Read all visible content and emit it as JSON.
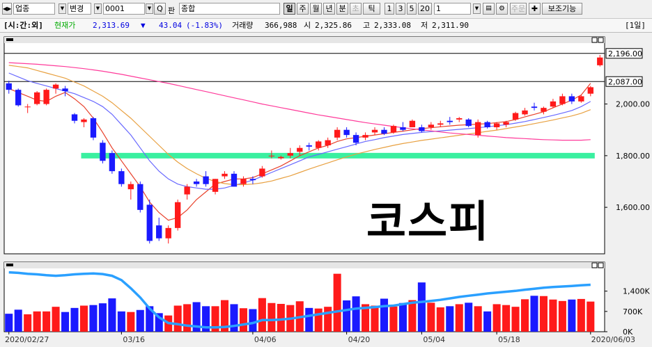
{
  "toolbar": {
    "market": "업종",
    "change_label": "변경",
    "code": "0001",
    "search_label": "Q",
    "pan_label": "판",
    "name": "종합",
    "periods": [
      "일",
      "주",
      "월",
      "년",
      "분",
      "초",
      "틱"
    ],
    "active_period": "일",
    "intervals": [
      "1",
      "3",
      "5",
      "20"
    ],
    "count": "1",
    "order_label": "주문",
    "aux_label": "보조기능"
  },
  "info": {
    "tag": "[시:간:외]",
    "price_label": "현재가",
    "price": "2,313.69",
    "arrow": "▼",
    "change": "43.04",
    "change_pct": "(-1.83%)",
    "volume_label": "거래량",
    "volume": "366,988",
    "open_label": "시",
    "open": "2,325.86",
    "high_label": "고",
    "high": "2,333.08",
    "low_label": "저",
    "low": "2,311.90",
    "period_tag": "[1일]"
  },
  "title_overlay": "코스피",
  "colors": {
    "up": "#ff1a1a",
    "down": "#1a1aff",
    "ma5": "#e8402a",
    "ma20": "#6868ff",
    "ma60": "#e8a040",
    "ma120": "#ff3a9a",
    "band": "#3af0a0",
    "vol_ma": "#2aa0ff"
  },
  "chart_data": {
    "type": "candlestick",
    "price_axis": {
      "ticks": [
        "2,000.00",
        "1,800.00",
        "1,600.00"
      ],
      "ticks_values": [
        2000,
        1800,
        1600
      ],
      "range": [
        1420,
        2260
      ]
    },
    "price_markers": [
      {
        "label": "2,196.00",
        "value": 2196
      },
      {
        "label": "2,087.00",
        "value": 2087
      }
    ],
    "volume_axis": {
      "ticks": [
        "1,400K",
        "700K",
        "0K"
      ],
      "ticks_values": [
        1400,
        700,
        0
      ],
      "range": [
        0,
        2400
      ]
    },
    "x_labels": [
      {
        "label": "2020/02/27",
        "index": 0
      },
      {
        "label": "03/16",
        "index": 12
      },
      {
        "label": "04/06",
        "index": 26
      },
      {
        "label": "04/20",
        "index": 36
      },
      {
        "label": "05/04",
        "index": 44
      },
      {
        "label": "05/18",
        "index": 52
      },
      {
        "label": "2020/06/03",
        "index": 62
      }
    ],
    "candles": [
      [
        2080,
        2090,
        2040,
        2055
      ],
      [
        2055,
        2060,
        1990,
        1995
      ],
      [
        1990,
        2000,
        1965,
        1990
      ],
      [
        2000,
        2050,
        1995,
        2045
      ],
      [
        2000,
        2060,
        1995,
        2055
      ],
      [
        2060,
        2080,
        2040,
        2075
      ],
      [
        2060,
        2070,
        2030,
        2050
      ],
      [
        1960,
        1965,
        1925,
        1935
      ],
      [
        1930,
        1945,
        1910,
        1940
      ],
      [
        1945,
        1950,
        1860,
        1870
      ],
      [
        1850,
        1860,
        1770,
        1780
      ],
      [
        1810,
        1820,
        1730,
        1740
      ],
      [
        1740,
        1750,
        1680,
        1690
      ],
      [
        1670,
        1700,
        1630,
        1690
      ],
      [
        1690,
        1700,
        1580,
        1590
      ],
      [
        1610,
        1630,
        1460,
        1470
      ],
      [
        1530,
        1560,
        1470,
        1480
      ],
      [
        1480,
        1530,
        1460,
        1520
      ],
      [
        1520,
        1630,
        1510,
        1620
      ],
      [
        1650,
        1690,
        1630,
        1680
      ],
      [
        1700,
        1710,
        1680,
        1690
      ],
      [
        1720,
        1740,
        1680,
        1690
      ],
      [
        1660,
        1710,
        1650,
        1710
      ],
      [
        1720,
        1740,
        1710,
        1730
      ],
      [
        1730,
        1740,
        1680,
        1680
      ],
      [
        1690,
        1720,
        1680,
        1710
      ],
      [
        1710,
        1720,
        1690,
        1705
      ],
      [
        1720,
        1760,
        1715,
        1750
      ],
      [
        1800,
        1820,
        1790,
        1800
      ],
      [
        1790,
        1800,
        1785,
        1795
      ],
      [
        1800,
        1830,
        1790,
        1810
      ],
      [
        1815,
        1840,
        1800,
        1830
      ],
      [
        1840,
        1850,
        1820,
        1835
      ],
      [
        1830,
        1860,
        1820,
        1855
      ],
      [
        1840,
        1870,
        1830,
        1860
      ],
      [
        1870,
        1910,
        1860,
        1900
      ],
      [
        1900,
        1910,
        1870,
        1880
      ],
      [
        1880,
        1890,
        1840,
        1850
      ],
      [
        1870,
        1890,
        1860,
        1880
      ],
      [
        1890,
        1910,
        1880,
        1900
      ],
      [
        1900,
        1910,
        1880,
        1885
      ],
      [
        1890,
        1920,
        1885,
        1915
      ],
      [
        1910,
        1930,
        1895,
        1900
      ],
      [
        1910,
        1940,
        1910,
        1935
      ],
      [
        1910,
        1920,
        1890,
        1895
      ],
      [
        1910,
        1930,
        1900,
        1920
      ],
      [
        1920,
        1935,
        1910,
        1925
      ],
      [
        1935,
        1950,
        1920,
        1930
      ],
      [
        1940,
        1950,
        1930,
        1945
      ],
      [
        1940,
        1945,
        1910,
        1915
      ],
      [
        1880,
        1940,
        1870,
        1930
      ],
      [
        1930,
        1935,
        1905,
        1910
      ],
      [
        1910,
        1930,
        1900,
        1925
      ],
      [
        1920,
        1935,
        1910,
        1930
      ],
      [
        1940,
        1970,
        1935,
        1965
      ],
      [
        1960,
        1985,
        1955,
        1975
      ],
      [
        1990,
        2005,
        1975,
        1985
      ],
      [
        1970,
        1990,
        1960,
        1985
      ],
      [
        1990,
        2020,
        1985,
        2010
      ],
      [
        2000,
        2040,
        1995,
        2030
      ],
      [
        2030,
        2040,
        2000,
        2010
      ],
      [
        2010,
        2035,
        2005,
        2030
      ],
      [
        2040,
        2070,
        2030,
        2065
      ]
    ],
    "last_candle": {
      "open": 2150,
      "high": 2190,
      "low": 2145,
      "close": 2180
    },
    "volume": [
      620,
      760,
      600,
      700,
      700,
      860,
      680,
      820,
      900,
      920,
      980,
      1150,
      700,
      680,
      750,
      880,
      640,
      560,
      900,
      950,
      1020,
      880,
      880,
      1090,
      950,
      810,
      780,
      1160,
      990,
      960,
      920,
      1050,
      820,
      800,
      860,
      2000,
      1080,
      1220,
      950,
      900,
      1140,
      870,
      990,
      1090,
      1700,
      1000,
      840,
      880,
      950,
      1000,
      880,
      700,
      950,
      920,
      860,
      1120,
      1240,
      1230,
      1110,
      1060,
      1110,
      1130,
      1040
    ],
    "volume_ma": [
      2050,
      2030,
      2000,
      1980,
      1950,
      1930,
      1950,
      1980,
      2000,
      2010,
      1990,
      1930,
      1780,
      1500,
      1180,
      800,
      500,
      300,
      260,
      210,
      180,
      150,
      150,
      160,
      200,
      250,
      300,
      400,
      400,
      420,
      450,
      500,
      550,
      600,
      650,
      700,
      750,
      800,
      820,
      850,
      880,
      900,
      950,
      1000,
      1030,
      1060,
      1100,
      1150,
      1200,
      1240,
      1280,
      1320,
      1350,
      1380,
      1410,
      1450,
      1480,
      1520,
      1540,
      1560,
      1580,
      1600,
      1620
    ],
    "series": [
      {
        "name": "MA5",
        "values": [
          2060,
          2045,
          2030,
          2015,
          2010,
          2030,
          2045,
          2020,
          1990,
          1945,
          1890,
          1830,
          1780,
          1730,
          1680,
          1620,
          1580,
          1550,
          1560,
          1590,
          1630,
          1660,
          1690,
          1700,
          1710,
          1710,
          1715,
          1730,
          1745,
          1760,
          1780,
          1800,
          1815,
          1830,
          1840,
          1855,
          1865,
          1870,
          1875,
          1880,
          1885,
          1890,
          1895,
          1900,
          1905,
          1908,
          1912,
          1915,
          1918,
          1920,
          1922,
          1924,
          1928,
          1932,
          1940,
          1950,
          1960,
          1970,
          1985,
          2000,
          2015,
          2035,
          2080
        ]
      },
      {
        "name": "MA20",
        "values": [
          2120,
          2105,
          2090,
          2080,
          2070,
          2060,
          2050,
          2040,
          2025,
          2010,
          1990,
          1960,
          1920,
          1880,
          1830,
          1780,
          1740,
          1710,
          1690,
          1680,
          1675,
          1670,
          1670,
          1675,
          1685,
          1695,
          1705,
          1720,
          1735,
          1750,
          1765,
          1780,
          1795,
          1805,
          1815,
          1825,
          1835,
          1845,
          1855,
          1862,
          1870,
          1876,
          1882,
          1886,
          1890,
          1893,
          1896,
          1899,
          1902,
          1905,
          1908,
          1912,
          1916,
          1920,
          1926,
          1932,
          1940,
          1948,
          1956,
          1965,
          1975,
          1990,
          2010
        ]
      },
      {
        "name": "MA60",
        "values": [
          2150,
          2145,
          2140,
          2130,
          2120,
          2110,
          2100,
          2085,
          2070,
          2050,
          2030,
          2005,
          1975,
          1945,
          1910,
          1875,
          1840,
          1805,
          1775,
          1750,
          1730,
          1712,
          1700,
          1692,
          1688,
          1688,
          1690,
          1695,
          1702,
          1712,
          1722,
          1735,
          1748,
          1760,
          1772,
          1784,
          1795,
          1806,
          1815,
          1824,
          1832,
          1840,
          1847,
          1853,
          1859,
          1864,
          1869,
          1874,
          1879,
          1884,
          1889,
          1894,
          1899,
          1905,
          1911,
          1917,
          1924,
          1931,
          1938,
          1946,
          1954,
          1964,
          1978
        ]
      },
      {
        "name": "MA120",
        "values": [
          2160,
          2158,
          2156,
          2154,
          2151,
          2148,
          2145,
          2141,
          2137,
          2132,
          2127,
          2121,
          2115,
          2108,
          2101,
          2094,
          2087,
          2080,
          2072,
          2064,
          2056,
          2048,
          2040,
          2032,
          2024,
          2016,
          2008,
          2000,
          1993,
          1986,
          1979,
          1972,
          1965,
          1958,
          1952,
          1946,
          1940,
          1934,
          1928,
          1923,
          1918,
          1913,
          1908,
          1904,
          1900,
          1896,
          1892,
          1888,
          1885,
          1882,
          1879,
          1876,
          1873,
          1870,
          1868,
          1866,
          1864,
          1862,
          1861,
          1860,
          1860,
          1860,
          1862
        ]
      }
    ],
    "band": {
      "value": 1800
    }
  }
}
